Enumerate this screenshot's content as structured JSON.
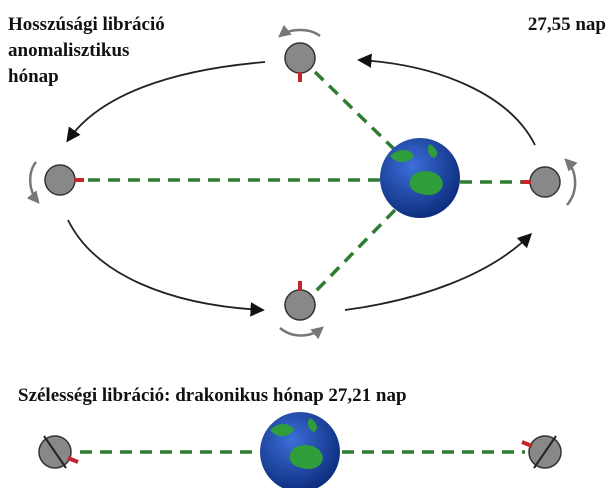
{
  "top": {
    "title_lines": [
      "Hosszúsági libráció",
      "anomalisztikus",
      "hónap"
    ],
    "period": "27,55 nap"
  },
  "bottom": {
    "caption": "Szélességi libráció: drakonikus hónap 27,21 nap"
  }
}
